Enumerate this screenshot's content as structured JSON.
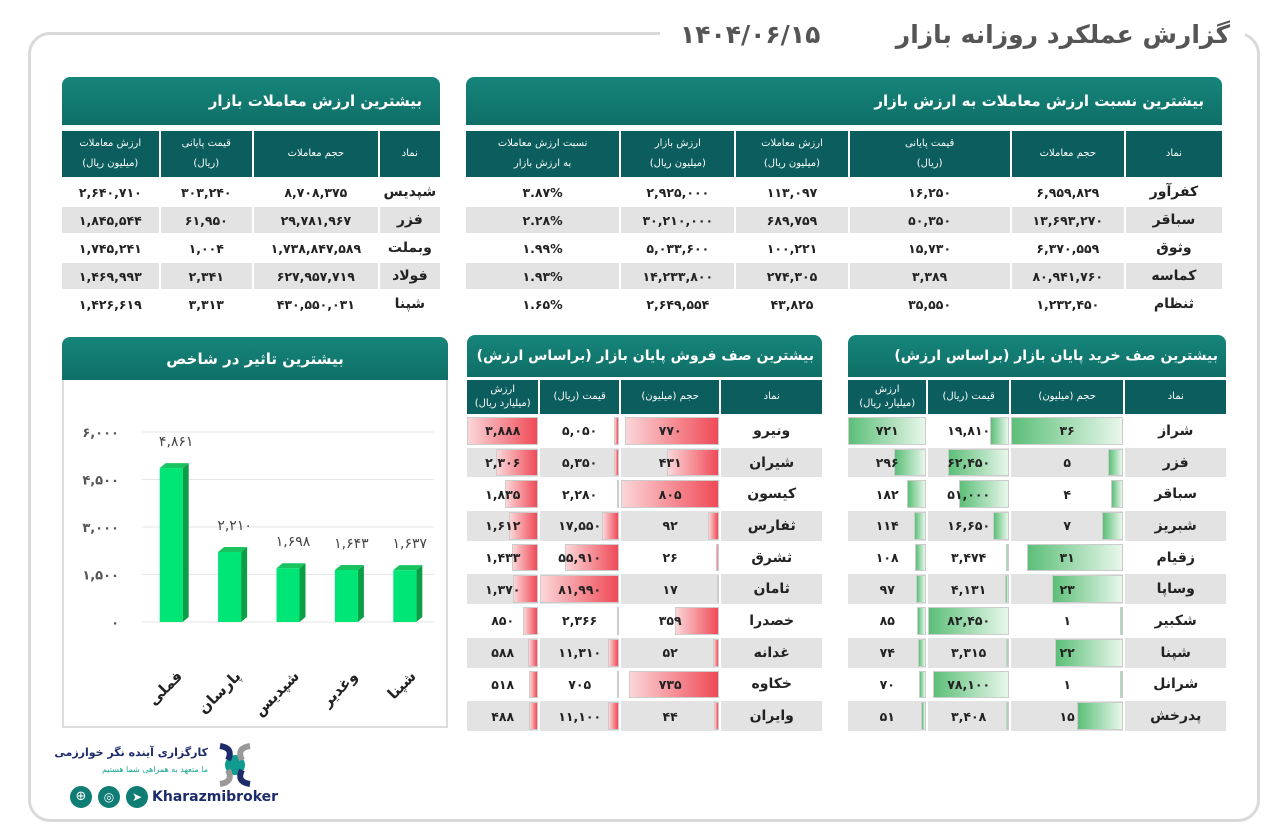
{
  "header": {
    "title": "گزارش عملکرد روزانه بازار",
    "date": "۱۴۰۴/۰۶/۱۵"
  },
  "ratio": {
    "title": "بیشترین نسبت ارزش معاملات به ارزش بازار",
    "columns": [
      [
        "نماد",
        ""
      ],
      [
        "حجم معاملات",
        ""
      ],
      [
        "قیمت پایانی",
        "(ریال)"
      ],
      [
        "ارزش معاملات",
        "(میلیون ریال)"
      ],
      [
        "ارزش بازار",
        "(میلیون ریال)"
      ],
      [
        "نسبت ارزش معاملات",
        "به ارزش بازار"
      ]
    ],
    "rows": [
      [
        "کفرآور",
        "۶,۹۵۹,۸۲۹",
        "۱۶,۲۵۰",
        "۱۱۳,۰۹۷",
        "۲,۹۲۵,۰۰۰",
        "۳.۸۷%"
      ],
      [
        "سباقر",
        "۱۳,۶۹۳,۲۷۰",
        "۵۰,۳۵۰",
        "۶۸۹,۷۵۹",
        "۳۰,۲۱۰,۰۰۰",
        "۲.۲۸%"
      ],
      [
        "وثوق",
        "۶,۳۷۰,۵۵۹",
        "۱۵,۷۳۰",
        "۱۰۰,۲۲۱",
        "۵,۰۳۳,۶۰۰",
        "۱.۹۹%"
      ],
      [
        "کماسه",
        "۸۰,۹۴۱,۷۶۰",
        "۳,۳۸۹",
        "۲۷۴,۳۰۵",
        "۱۴,۲۳۳,۸۰۰",
        "۱.۹۳%"
      ],
      [
        "ثنظام",
        "۱,۲۳۲,۴۵۰",
        "۳۵,۵۵۰",
        "۴۳,۸۲۵",
        "۲,۶۴۹,۵۵۴",
        "۱.۶۵%"
      ]
    ]
  },
  "value": {
    "title": "بیشترین ارزش معاملات بازار",
    "columns": [
      [
        "نماد",
        ""
      ],
      [
        "حجم معاملات",
        ""
      ],
      [
        "قیمت پایانی",
        "(ریال)"
      ],
      [
        "ارزش معاملات",
        "(میلیون ریال)"
      ]
    ],
    "rows": [
      [
        "شپدیس",
        "۸,۷۰۸,۳۷۵",
        "۳۰۳,۲۴۰",
        "۲,۶۴۰,۷۱۰"
      ],
      [
        "فزر",
        "۲۹,۷۸۱,۹۶۷",
        "۶۱,۹۵۰",
        "۱,۸۴۵,۵۴۴"
      ],
      [
        "وبملت",
        "۱,۷۳۸,۸۴۷,۵۸۹",
        "۱,۰۰۴",
        "۱,۷۴۵,۲۴۱"
      ],
      [
        "فولاد",
        "۶۲۷,۹۵۷,۷۱۹",
        "۲,۳۴۱",
        "۱,۴۶۹,۹۹۳"
      ],
      [
        "شپنا",
        "۴۳۰,۵۵۰,۰۳۱",
        "۳,۳۱۳",
        "۱,۴۲۶,۶۱۹"
      ]
    ]
  },
  "sell": {
    "title": "بیشترین صف فروش پایان بازار (براساس ارزش)",
    "bar_color": "#ef4a57",
    "columns": [
      [
        "نماد",
        ""
      ],
      [
        "حجم (میلیون)",
        ""
      ],
      [
        "قیمت (ریال)",
        ""
      ],
      [
        "ارزش",
        "(میلیارد ریال)"
      ]
    ],
    "rows": [
      [
        "ونیرو",
        "۷۷۰",
        "۵,۰۵۰",
        "۳,۸۸۸"
      ],
      [
        "شیران",
        "۴۳۱",
        "۵,۳۵۰",
        "۲,۳۰۶"
      ],
      [
        "کیسون",
        "۸۰۵",
        "۲,۲۸۰",
        "۱,۸۳۵"
      ],
      [
        "ثفارس",
        "۹۲",
        "۱۷,۵۵۰",
        "۱,۶۱۲"
      ],
      [
        "ثشرق",
        "۲۶",
        "۵۵,۹۱۰",
        "۱,۴۳۳"
      ],
      [
        "ثامان",
        "۱۷",
        "۸۱,۹۹۰",
        "۱,۳۷۰"
      ],
      [
        "خصدرا",
        "۳۵۹",
        "۲,۳۶۶",
        "۸۵۰"
      ],
      [
        "غدانه",
        "۵۲",
        "۱۱,۳۱۰",
        "۵۸۸"
      ],
      [
        "خکاوه",
        "۷۳۵",
        "۷۰۵",
        "۵۱۸"
      ],
      [
        "وایران",
        "۴۴",
        "۱۱,۱۰۰",
        "۴۸۸"
      ]
    ]
  },
  "buy": {
    "title": "بیشترین صف خرید پایان بازار (براساس ارزش)",
    "bar_color": "#5cbf78",
    "columns": [
      [
        "نماد",
        ""
      ],
      [
        "حجم (میلیون)",
        ""
      ],
      [
        "قیمت (ریال)",
        ""
      ],
      [
        "ارزش",
        "(میلیارد ریال)"
      ]
    ],
    "rows": [
      [
        "شراز",
        "۳۶",
        "۱۹,۸۱۰",
        "۷۲۱"
      ],
      [
        "فزر",
        "۵",
        "۶۲,۴۵۰",
        "۲۹۶"
      ],
      [
        "سباقر",
        "۴",
        "۵۱,۰۰۰",
        "۱۸۲"
      ],
      [
        "شبریز",
        "۷",
        "۱۶,۶۵۰",
        "۱۱۴"
      ],
      [
        "زقیام",
        "۳۱",
        "۳,۴۷۴",
        "۱۰۸"
      ],
      [
        "وساپا",
        "۲۳",
        "۴,۱۳۱",
        "۹۷"
      ],
      [
        "شکبیر",
        "۱",
        "۸۲,۴۵۰",
        "۸۵"
      ],
      [
        "شپنا",
        "۲۲",
        "۳,۳۱۵",
        "۷۴"
      ],
      [
        "شرانل",
        "۱",
        "۷۸,۱۰۰",
        "۷۰"
      ],
      [
        "پدرخش",
        "۱۵",
        "۳,۴۰۸",
        "۵۱"
      ]
    ]
  },
  "chart_data": {
    "type": "bar",
    "title": "بیشترین تاثیر در شاخص",
    "bar_color": "#00e676",
    "categories": [
      "فملی",
      "پارسان",
      "شپدیس",
      "وغدیر",
      "شپنا"
    ],
    "values": [
      4861,
      2210,
      1698,
      1643,
      1637
    ],
    "labels": [
      "۴,۸۶۱",
      "۲,۲۱۰",
      "۱,۶۹۸",
      "۱,۶۴۳",
      "۱,۶۳۷"
    ],
    "yticks": [
      0,
      1500,
      3000,
      4500,
      6000
    ],
    "ytick_labels": [
      "۰",
      "۱,۵۰۰",
      "۳,۰۰۰",
      "۴,۵۰۰",
      "۶,۰۰۰"
    ],
    "ylim": [
      0,
      6000
    ],
    "grid": true
  },
  "logo": {
    "name": "کارگزاری آینده نگر خوارزمی",
    "slogan": "ما متعهد به همراهی شما هستیم",
    "handle": "Kharazmibroker",
    "icons": [
      "web-icon",
      "instagram-icon",
      "telegram-icon"
    ],
    "brand_color": "#0f7d74"
  }
}
